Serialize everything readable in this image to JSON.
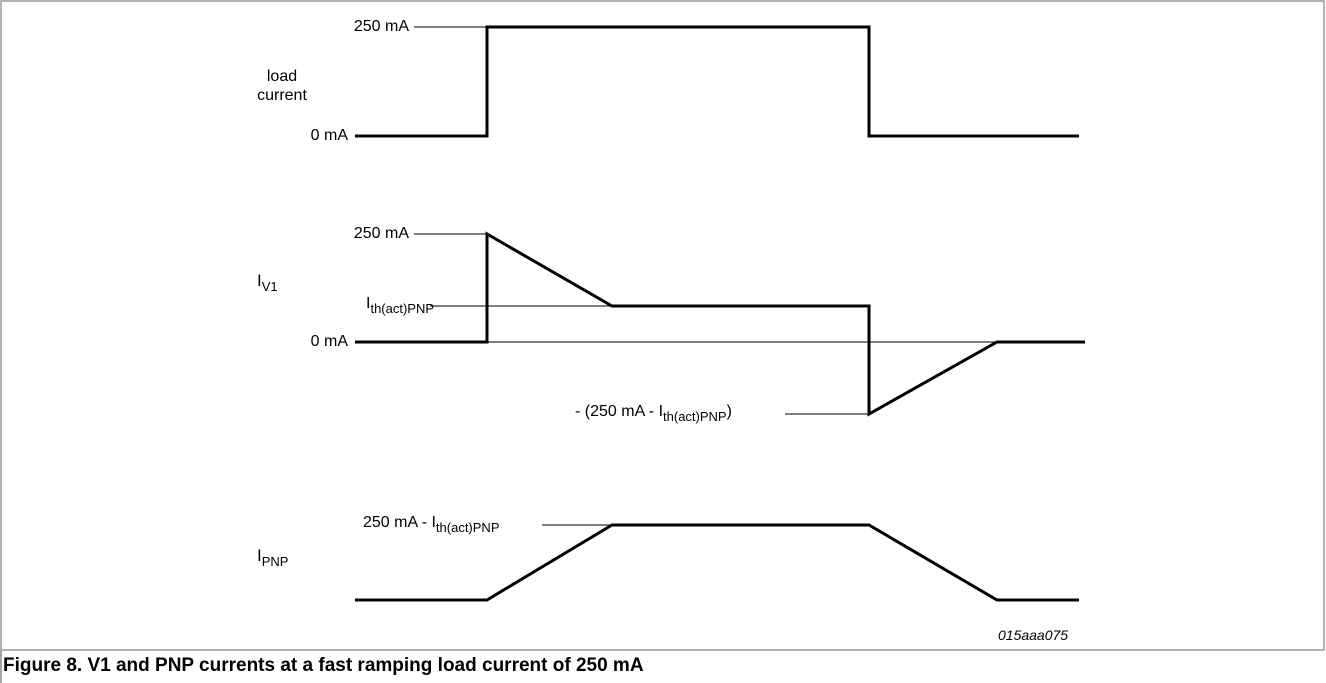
{
  "figure": {
    "caption": "Figure 8.  V1 and PNP currents at a fast ramping load current of 250 mA",
    "code": "015aaa075"
  },
  "panels": {
    "load_current": {
      "label_line1": "load",
      "label_line2": "current",
      "level_high": "250 mA",
      "level_low": "0 mA"
    },
    "iv1": {
      "symbol": "I",
      "symbol_sub": "V1",
      "level_high": "250 mA",
      "level_threshold_main": "I",
      "level_threshold_sub": "th(act)PNP",
      "level_zero": "0 mA",
      "level_negative_prefix": "- (250 mA -  I",
      "level_negative_sub": "th(act)PNP",
      "level_negative_suffix": ")"
    },
    "ipnp": {
      "symbol": "I",
      "symbol_sub": "PNP",
      "level_high_prefix": "250 mA -  I",
      "level_high_sub": "th(act)PNP"
    }
  },
  "colors": {
    "waveform": "#000000",
    "frame": "#9a9a9a"
  }
}
